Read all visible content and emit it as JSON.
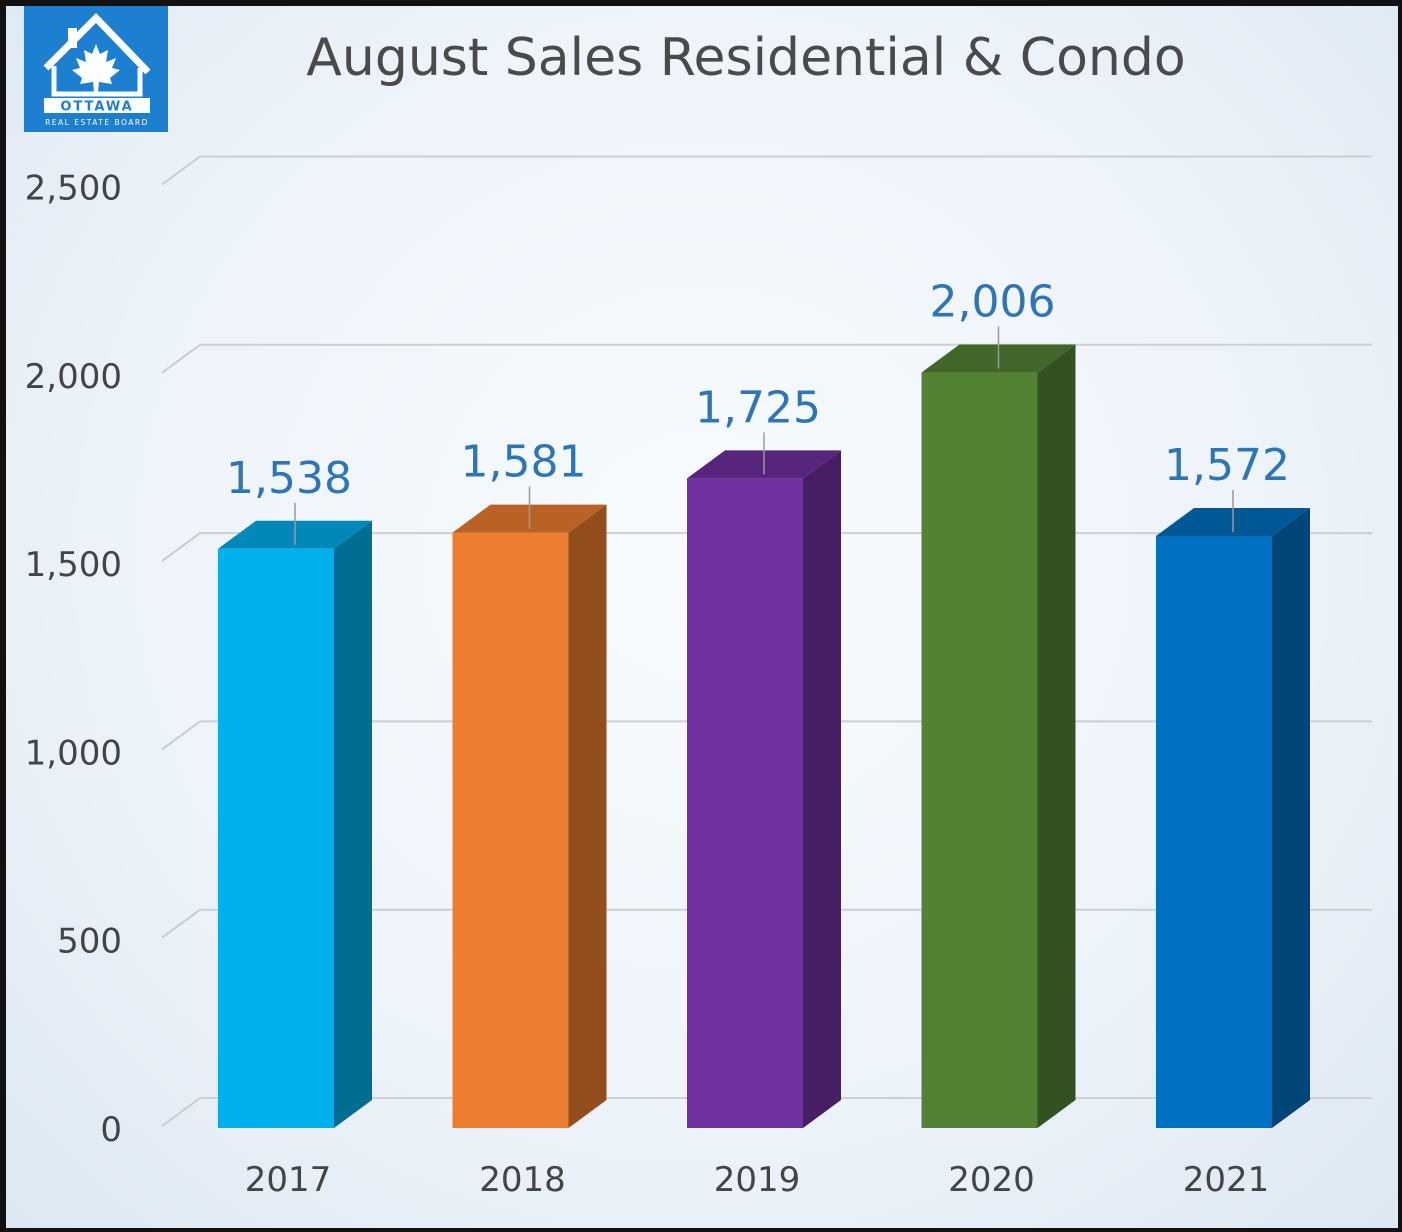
{
  "logo": {
    "name": "OTTAWA",
    "subtitle": "REAL ESTATE BOARD",
    "icon": "house-maple-leaf-icon",
    "color": "#1c7fd0"
  },
  "chart_data": {
    "type": "bar",
    "title": "August Sales Residential & Condo",
    "categories": [
      "2017",
      "2018",
      "2019",
      "2020",
      "2021"
    ],
    "values": [
      1538,
      1581,
      1725,
      2006,
      1572
    ],
    "data_labels": [
      "1,538",
      "1,581",
      "1,725",
      "2,006",
      "1,572"
    ],
    "bar_colors": [
      "#00b0ec",
      "#ed7d31",
      "#7030a0",
      "#548235",
      "#0070c0"
    ],
    "ylim": [
      0,
      2500
    ],
    "yticks": [
      0,
      500,
      1000,
      1500,
      2000,
      2500
    ],
    "ytick_labels": [
      "0",
      "500",
      "1,000",
      "1,500",
      "2,000",
      "2,500"
    ],
    "xlabel": "",
    "ylabel": "",
    "grid": true,
    "style": "3d-column",
    "label_color": "#2e75b6"
  }
}
